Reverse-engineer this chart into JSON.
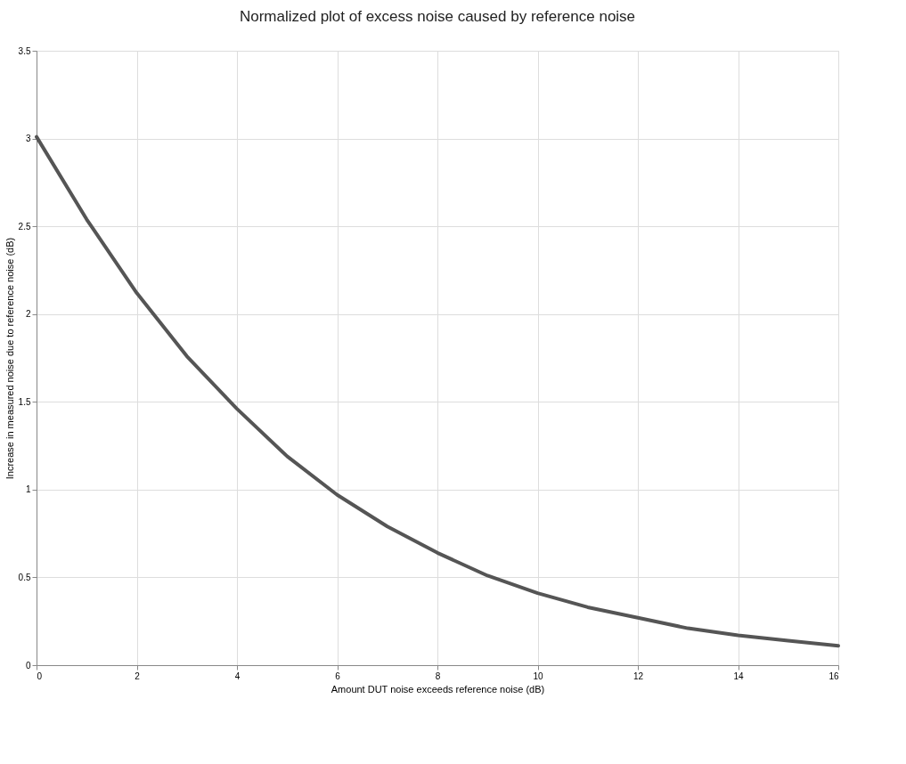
{
  "chart_data": {
    "type": "line",
    "title": "Normalized plot of excess noise caused by reference noise",
    "xlabel": "Amount DUT noise exceeds reference noise (dB)",
    "ylabel": "Increase in measured noise due to reference noise (dB)",
    "x": [
      0,
      1,
      2,
      3,
      4,
      5,
      6,
      7,
      8,
      9,
      10,
      11,
      12,
      13,
      14,
      15,
      16
    ],
    "series": [
      {
        "color": "#555555",
        "values": [
          3.01,
          2.54,
          2.12,
          1.76,
          1.46,
          1.19,
          0.97,
          0.79,
          0.64,
          0.51,
          0.41,
          0.33,
          0.27,
          0.21,
          0.17,
          0.14,
          0.11
        ]
      }
    ],
    "xlim": [
      0,
      16
    ],
    "xticks": [
      0,
      2,
      4,
      6,
      8,
      10,
      12,
      14,
      16
    ],
    "ylim": [
      0,
      3.5
    ],
    "yticks": [
      0,
      0.5,
      1,
      1.5,
      2,
      2.5,
      3,
      3.5
    ],
    "grid": true,
    "marker": "none",
    "line_style": "solid"
  }
}
